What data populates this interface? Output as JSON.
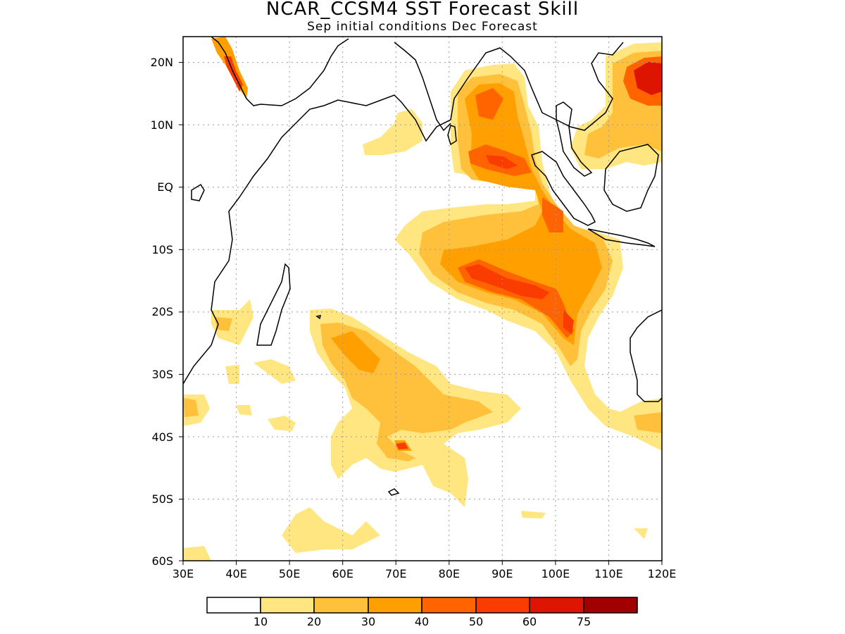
{
  "title": "NCAR_CCSM4  SST Forecast Skill",
  "subtitle": "Sep initial conditions   Dec Forecast",
  "map": {
    "lon_range": [
      30,
      120
    ],
    "lat_range": [
      -60,
      24
    ],
    "x_ticks": [
      "30E",
      "40E",
      "50E",
      "60E",
      "70E",
      "80E",
      "90E",
      "100E",
      "110E",
      "120E"
    ],
    "y_ticks": [
      "20N",
      "10N",
      "EQ",
      "10S",
      "20S",
      "30S",
      "40S",
      "50S",
      "60S"
    ],
    "grid": true
  },
  "colorbar": {
    "labels": [
      "10",
      "20",
      "30",
      "40",
      "50",
      "60",
      "75"
    ],
    "colors": [
      "#ffffff",
      "#ffe680",
      "#ffc03c",
      "#ffa000",
      "#ff6400",
      "#fa3c00",
      "#dc1400",
      "#a00000"
    ]
  }
}
